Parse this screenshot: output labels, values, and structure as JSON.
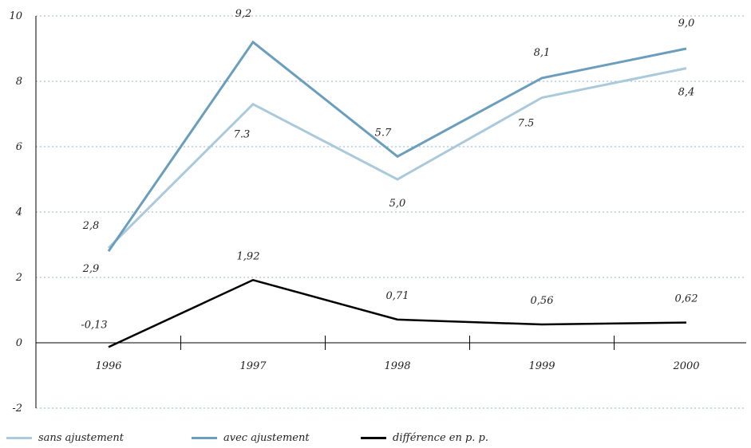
{
  "chart_data": {
    "type": "line",
    "categories": [
      "1996",
      "1997",
      "1998",
      "1999",
      "2000"
    ],
    "ylim": [
      -2,
      10
    ],
    "yticks": [
      "10",
      "8",
      "6",
      "4",
      "2",
      "0",
      "-2"
    ],
    "grid": "horizontal dotted",
    "legend_position": "bottom",
    "series": [
      {
        "name": "sans ajustement",
        "values": [
          2.9,
          7.3,
          5.0,
          7.5,
          8.4
        ],
        "labels": [
          "2,9",
          "7.3",
          "5,0",
          "7.5",
          "8,4"
        ],
        "color": "#aacadc"
      },
      {
        "name": "avec ajustement",
        "values": [
          2.8,
          9.2,
          5.7,
          8.1,
          9.0
        ],
        "labels": [
          "2,8",
          "9,2",
          "5.7",
          "8,1",
          "9,0"
        ],
        "color": "#6b9ebd"
      },
      {
        "name": "différence en p. p.",
        "values": [
          -0.13,
          1.92,
          0.71,
          0.56,
          0.62
        ],
        "labels": [
          "-0,13",
          "1,92",
          "0,71",
          "0,56",
          "0,62"
        ],
        "color": "#000000"
      }
    ]
  }
}
